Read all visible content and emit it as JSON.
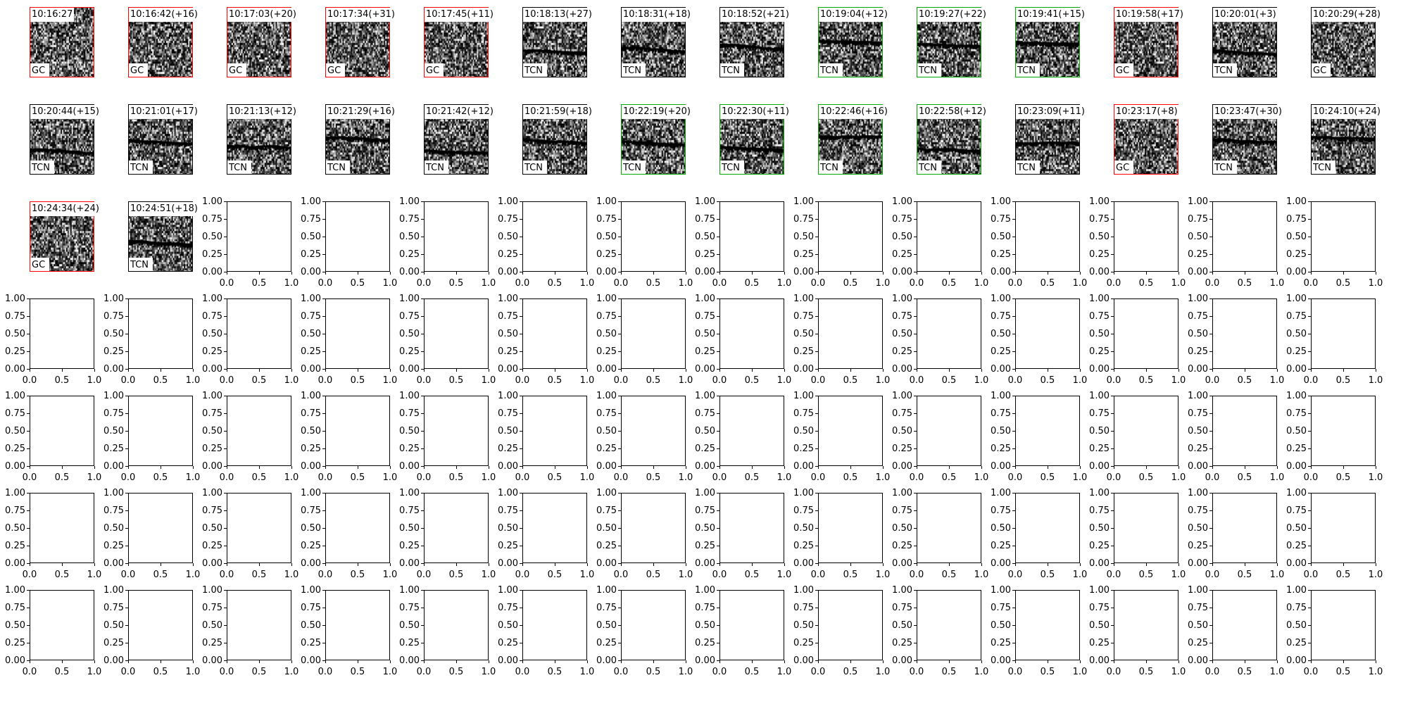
{
  "chart_data": {
    "type": "image-grid",
    "grid": {
      "rows": 7,
      "cols": 14
    },
    "panels": [
      {
        "time": "10:16:27",
        "label": "GC",
        "border": "#ff0000"
      },
      {
        "time": "10:16:42(+16)",
        "label": "GC",
        "border": "#ff0000"
      },
      {
        "time": "10:17:03(+20)",
        "label": "GC",
        "border": "#ff0000"
      },
      {
        "time": "10:17:34(+31)",
        "label": "GC",
        "border": "#ff0000"
      },
      {
        "time": "10:17:45(+11)",
        "label": "GC",
        "border": "#ff0000"
      },
      {
        "time": "10:18:13(+27)",
        "label": "TCN",
        "border": "#000000"
      },
      {
        "time": "10:18:31(+18)",
        "label": "TCN",
        "border": "#000000"
      },
      {
        "time": "10:18:52(+21)",
        "label": "TCN",
        "border": "#000000"
      },
      {
        "time": "10:19:04(+12)",
        "label": "TCN",
        "border": "#00aa00"
      },
      {
        "time": "10:19:27(+22)",
        "label": "TCN",
        "border": "#00aa00"
      },
      {
        "time": "10:19:41(+15)",
        "label": "TCN",
        "border": "#00aa00"
      },
      {
        "time": "10:19:58(+17)",
        "label": "GC",
        "border": "#ff0000"
      },
      {
        "time": "10:20:01(+3)",
        "label": "TCN",
        "border": "#000000"
      },
      {
        "time": "10:20:29(+28)",
        "label": "GC",
        "border": "#000000"
      },
      {
        "time": "10:20:44(+15)",
        "label": "TCN",
        "border": "#000000"
      },
      {
        "time": "10:21:01(+17)",
        "label": "TCN",
        "border": "#000000"
      },
      {
        "time": "10:21:13(+12)",
        "label": "TCN",
        "border": "#000000"
      },
      {
        "time": "10:21:29(+16)",
        "label": "TCN",
        "border": "#000000"
      },
      {
        "time": "10:21:42(+12)",
        "label": "TCN",
        "border": "#000000"
      },
      {
        "time": "10:21:59(+18)",
        "label": "TCN",
        "border": "#000000"
      },
      {
        "time": "10:22:19(+20)",
        "label": "TCN",
        "border": "#00aa00"
      },
      {
        "time": "10:22:30(+11)",
        "label": "TCN",
        "border": "#00aa00"
      },
      {
        "time": "10:22:46(+16)",
        "label": "TCN",
        "border": "#00aa00"
      },
      {
        "time": "10:22:58(+12)",
        "label": "TCN",
        "border": "#00aa00"
      },
      {
        "time": "10:23:09(+11)",
        "label": "TCN",
        "border": "#000000"
      },
      {
        "time": "10:23:17(+8)",
        "label": "GC",
        "border": "#ff0000"
      },
      {
        "time": "10:23:47(+30)",
        "label": "TCN",
        "border": "#000000"
      },
      {
        "time": "10:24:10(+24)",
        "label": "TCN",
        "border": "#000000"
      },
      {
        "time": "10:24:34(+24)",
        "label": "GC",
        "border": "#ff0000"
      },
      {
        "time": "10:24:51(+18)",
        "label": "TCN",
        "border": "#000000"
      }
    ],
    "empty_axes": {
      "xlim": [
        0,
        1
      ],
      "ylim": [
        0,
        1
      ],
      "xticks": [
        "0.0",
        "0.5",
        "1.0"
      ],
      "yticks": [
        "0.00",
        "0.25",
        "0.50",
        "0.75",
        "1.00"
      ]
    },
    "colormap": "gray_r"
  }
}
